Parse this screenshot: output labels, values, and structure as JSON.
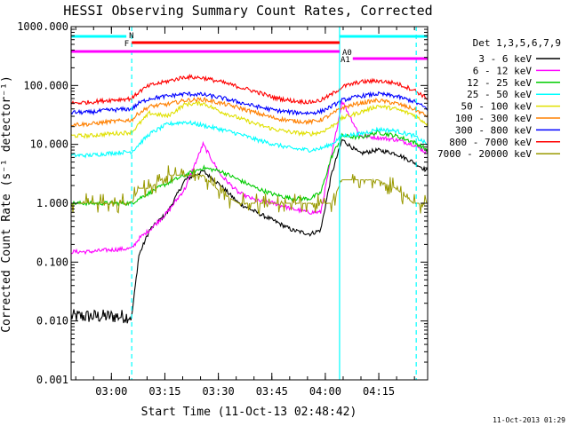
{
  "chart_data": {
    "type": "line",
    "title": "HESSI Observing Summary Count Rates, Corrected",
    "xlabel": "Start Time (11-Oct-13 02:48:42)",
    "ylabel": "Corrected Count Rate (s⁻¹ detector⁻¹)",
    "footer": "11-Oct-2013 01:29",
    "y_scale": "log",
    "ylim": [
      0.001,
      1000
    ],
    "xlim_minutes_after_start": [
      0,
      100
    ],
    "x_tick_labels": [
      "03:00",
      "03:15",
      "03:30",
      "03:45",
      "04:00",
      "04:15"
    ],
    "x_tick_minutes": [
      11.3,
      26.3,
      41.3,
      56.3,
      71.3,
      86.3
    ],
    "y_tick_labels": [
      "0.001",
      "0.010",
      "0.100",
      "1.000",
      "10.000",
      "100.000",
      "1000.000"
    ],
    "y_tick_values": [
      0.001,
      0.01,
      0.1,
      1,
      10,
      100,
      1000
    ],
    "legend_title": "Det 1,3,5,6,7,9",
    "legend_position": "right",
    "x": [
      0,
      5,
      10,
      17,
      19,
      22,
      27,
      32,
      37,
      42,
      47,
      52,
      57,
      62,
      67,
      70,
      73,
      76,
      81,
      86,
      91,
      96,
      100
    ],
    "series": [
      {
        "name": "3 - 6 keV",
        "color": "#000000",
        "values": [
          0.012,
          0.012,
          0.012,
          0.012,
          0.13,
          0.35,
          0.7,
          2.5,
          3.5,
          2.0,
          1.0,
          0.7,
          0.5,
          0.35,
          0.3,
          0.35,
          3.0,
          12,
          7,
          8,
          7,
          5,
          3.5
        ]
      },
      {
        "name": "6 - 12 keV",
        "color": "#ff00ff",
        "values": [
          0.15,
          0.15,
          0.16,
          0.17,
          0.25,
          0.35,
          0.7,
          1.8,
          10,
          3,
          1.5,
          1.1,
          1.0,
          0.8,
          0.7,
          0.7,
          6,
          55,
          14,
          13,
          12,
          10,
          7
        ]
      },
      {
        "name": "12 - 25 keV",
        "color": "#00cc00",
        "values": [
          1.0,
          1.0,
          1.0,
          1.0,
          1.2,
          1.5,
          2.2,
          3.0,
          4.0,
          3.5,
          2.5,
          1.8,
          1.4,
          1.2,
          1.2,
          1.5,
          6,
          14,
          13,
          16,
          14,
          11,
          8
        ]
      },
      {
        "name": "25 - 50 keV",
        "color": "#00ffff",
        "values": [
          6.5,
          6.5,
          7,
          7.5,
          10,
          15,
          22,
          24,
          21,
          18,
          15,
          12,
          10,
          8.5,
          8.0,
          8.5,
          10,
          14,
          15,
          18,
          17,
          14,
          10
        ]
      },
      {
        "name": "50 - 100 keV",
        "color": "#e0e000",
        "values": [
          14,
          14,
          15,
          16,
          22,
          34,
          30,
          48,
          50,
          36,
          28,
          22,
          18,
          16,
          15,
          16,
          20,
          28,
          35,
          45,
          40,
          32,
          22
        ]
      },
      {
        "name": "100 - 300 keV",
        "color": "#ff8000",
        "values": [
          22,
          22,
          24,
          26,
          34,
          44,
          48,
          56,
          58,
          50,
          42,
          34,
          28,
          25,
          24,
          26,
          32,
          42,
          50,
          56,
          50,
          40,
          30
        ]
      },
      {
        "name": "300 - 800 keV",
        "color": "#0000ff",
        "values": [
          35,
          35,
          38,
          40,
          50,
          60,
          66,
          72,
          70,
          62,
          52,
          44,
          38,
          35,
          34,
          36,
          44,
          56,
          66,
          72,
          66,
          54,
          40
        ]
      },
      {
        "name": "800 - 7000 keV",
        "color": "#ff0000",
        "values": [
          50,
          52,
          56,
          60,
          78,
          100,
          118,
          140,
          135,
          115,
          95,
          78,
          62,
          55,
          52,
          56,
          70,
          95,
          115,
          120,
          110,
          85,
          60
        ]
      },
      {
        "name": "7000 - 20000 keV",
        "color": "#999900",
        "values": [
          1.0,
          1.0,
          1.0,
          1.0,
          1.8,
          1.8,
          3.0,
          3.0,
          3.0,
          1.5,
          1.0,
          1.0,
          1.0,
          1.0,
          1.0,
          1.0,
          1.0,
          2.5,
          2.5,
          2.5,
          1.8,
          1.0,
          1.0
        ]
      }
    ],
    "status_bars": [
      {
        "label": "N",
        "color": "#00ffff",
        "segments": [
          [
            0,
            15.5
          ],
          [
            75.3,
            100
          ]
        ]
      },
      {
        "label": "F",
        "color": "#ff0000",
        "segments": [
          [
            17,
            75.3
          ]
        ]
      },
      {
        "label": "A0",
        "color": "#ff00ff",
        "segments": [
          [
            0,
            75.3
          ]
        ]
      },
      {
        "label": "A1",
        "color": "#ff00ff",
        "segments": [
          [
            79,
            100
          ]
        ]
      }
    ],
    "vertical_markers": [
      {
        "minute": 17,
        "color": "#00ffff",
        "style": "dashed"
      },
      {
        "minute": 75.3,
        "color": "#00ffff",
        "style": "solid"
      },
      {
        "minute": 96.8,
        "color": "#00ffff",
        "style": "dashed"
      }
    ]
  }
}
